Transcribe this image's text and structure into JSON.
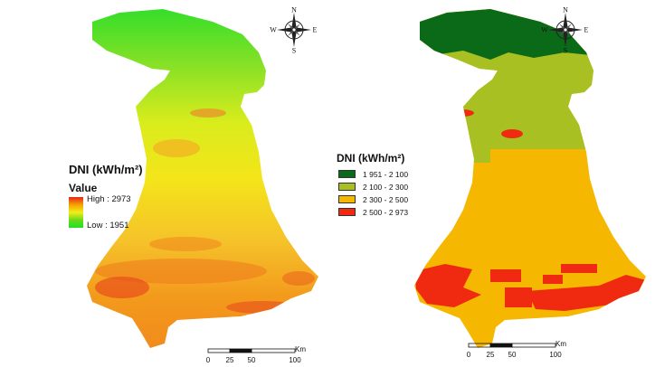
{
  "left_map": {
    "title": "DNI (kWh/m²)",
    "legend_title": "Value",
    "high_label": "High : 2973",
    "low_label": "Low : 1951",
    "gradient_colors": [
      "#e8231f",
      "#f5a300",
      "#f2ee18",
      "#6ad91a",
      "#22e022"
    ]
  },
  "right_map": {
    "title": "DNI (kWh/m²)",
    "classes": [
      {
        "label": "1 951 - 2 100",
        "color": "#0b6a17"
      },
      {
        "label": "2 100 - 2 300",
        "color": "#a9c022"
      },
      {
        "label": "2 300 - 2 500",
        "color": "#f5b700"
      },
      {
        "label": "2 500 - 2 973",
        "color": "#ef2a10"
      }
    ]
  },
  "compass": {
    "n": "N",
    "s": "S",
    "e": "E",
    "w": "W"
  },
  "scale_bar": {
    "ticks": [
      "0",
      "25",
      "50",
      "100"
    ],
    "unit": "Km"
  }
}
